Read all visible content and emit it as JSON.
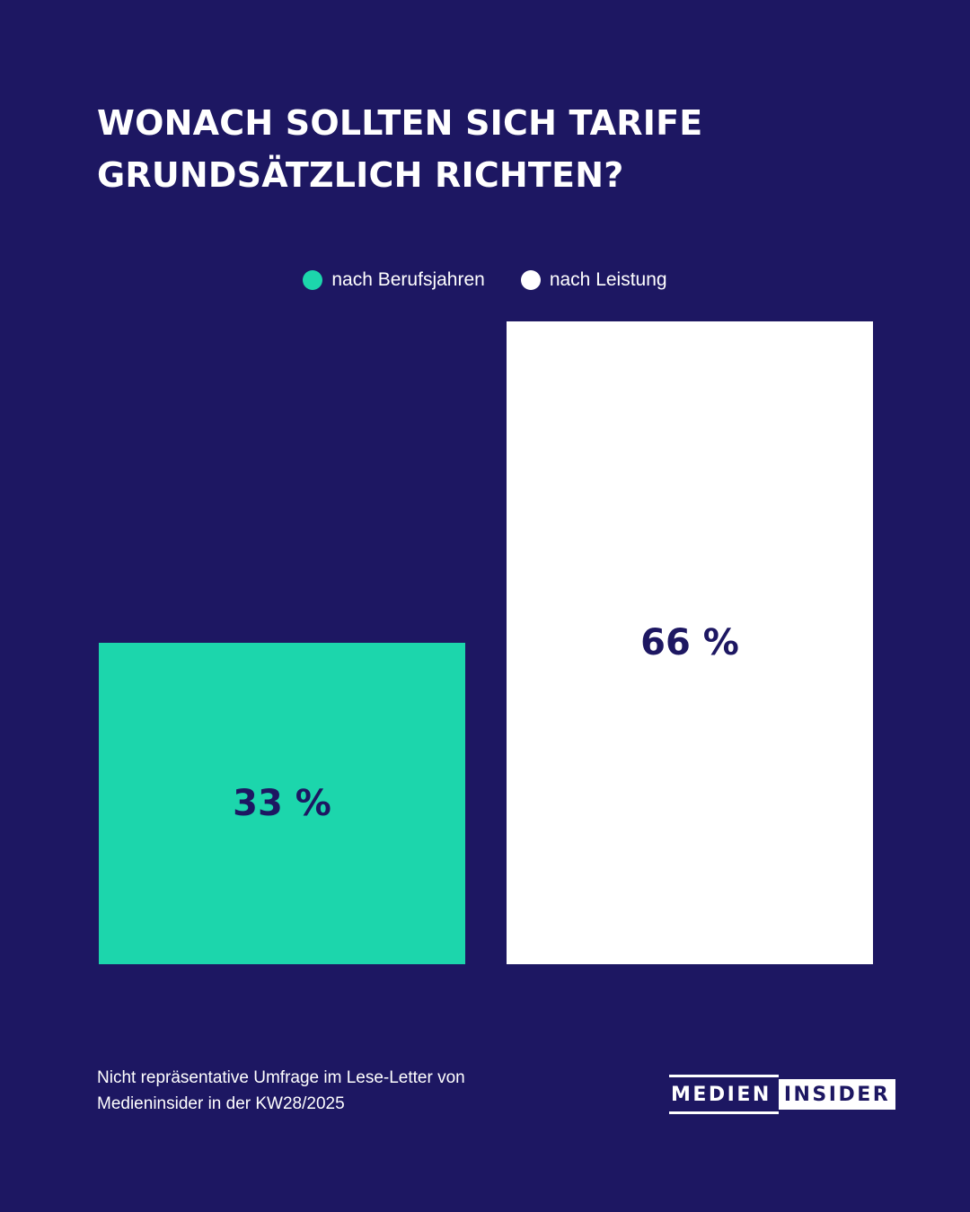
{
  "title": {
    "line1": "WONACH SOLLTEN SICH TARIFE",
    "line2": "GRUNDSÄTZLICH RICHTEN?"
  },
  "footnote": {
    "line1": "Nicht repräsentative Umfrage im Lese-Letter von",
    "line2": "Medieninsider in der KW28/2025"
  },
  "logo": {
    "part1": "MEDIEN",
    "part2": "INSIDER"
  },
  "colors": {
    "background": "#1d1762",
    "series1": "#1cd6ac",
    "series2": "#ffffff",
    "label_text": "#1d1762"
  },
  "chart_data": {
    "type": "bar",
    "categories": [
      "nach Berufsjahren",
      "nach Leistung"
    ],
    "values": [
      33,
      66
    ],
    "value_labels": [
      "33 %",
      "66 %"
    ],
    "colors": [
      "#1cd6ac",
      "#ffffff"
    ],
    "legend": [
      "nach Berufsjahren",
      "nach Leistung"
    ],
    "legend_position": "top-center",
    "grid": false,
    "ylim": [
      0,
      66
    ]
  }
}
